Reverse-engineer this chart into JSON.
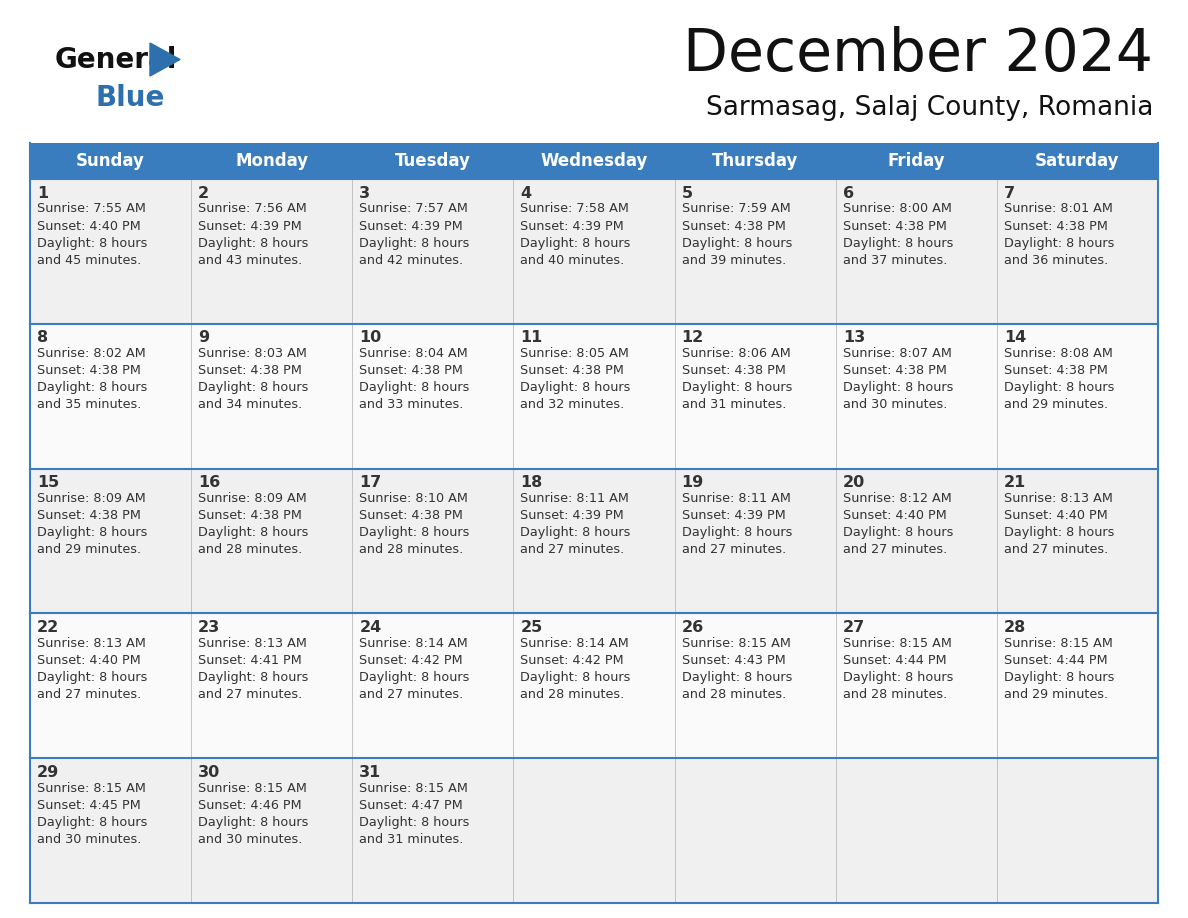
{
  "title": "December 2024",
  "subtitle": "Sarmasag, Salaj County, Romania",
  "header_color": "#3a7dbf",
  "header_text_color": "#ffffff",
  "border_color": "#3a7dbf",
  "text_color": "#333333",
  "days_of_week": [
    "Sunday",
    "Monday",
    "Tuesday",
    "Wednesday",
    "Thursday",
    "Friday",
    "Saturday"
  ],
  "weeks": [
    [
      {
        "day": 1,
        "sunrise": "7:55 AM",
        "sunset": "4:40 PM",
        "daylight_hours": 8,
        "daylight_minutes": 45
      },
      {
        "day": 2,
        "sunrise": "7:56 AM",
        "sunset": "4:39 PM",
        "daylight_hours": 8,
        "daylight_minutes": 43
      },
      {
        "day": 3,
        "sunrise": "7:57 AM",
        "sunset": "4:39 PM",
        "daylight_hours": 8,
        "daylight_minutes": 42
      },
      {
        "day": 4,
        "sunrise": "7:58 AM",
        "sunset": "4:39 PM",
        "daylight_hours": 8,
        "daylight_minutes": 40
      },
      {
        "day": 5,
        "sunrise": "7:59 AM",
        "sunset": "4:38 PM",
        "daylight_hours": 8,
        "daylight_minutes": 39
      },
      {
        "day": 6,
        "sunrise": "8:00 AM",
        "sunset": "4:38 PM",
        "daylight_hours": 8,
        "daylight_minutes": 37
      },
      {
        "day": 7,
        "sunrise": "8:01 AM",
        "sunset": "4:38 PM",
        "daylight_hours": 8,
        "daylight_minutes": 36
      }
    ],
    [
      {
        "day": 8,
        "sunrise": "8:02 AM",
        "sunset": "4:38 PM",
        "daylight_hours": 8,
        "daylight_minutes": 35
      },
      {
        "day": 9,
        "sunrise": "8:03 AM",
        "sunset": "4:38 PM",
        "daylight_hours": 8,
        "daylight_minutes": 34
      },
      {
        "day": 10,
        "sunrise": "8:04 AM",
        "sunset": "4:38 PM",
        "daylight_hours": 8,
        "daylight_minutes": 33
      },
      {
        "day": 11,
        "sunrise": "8:05 AM",
        "sunset": "4:38 PM",
        "daylight_hours": 8,
        "daylight_minutes": 32
      },
      {
        "day": 12,
        "sunrise": "8:06 AM",
        "sunset": "4:38 PM",
        "daylight_hours": 8,
        "daylight_minutes": 31
      },
      {
        "day": 13,
        "sunrise": "8:07 AM",
        "sunset": "4:38 PM",
        "daylight_hours": 8,
        "daylight_minutes": 30
      },
      {
        "day": 14,
        "sunrise": "8:08 AM",
        "sunset": "4:38 PM",
        "daylight_hours": 8,
        "daylight_minutes": 29
      }
    ],
    [
      {
        "day": 15,
        "sunrise": "8:09 AM",
        "sunset": "4:38 PM",
        "daylight_hours": 8,
        "daylight_minutes": 29
      },
      {
        "day": 16,
        "sunrise": "8:09 AM",
        "sunset": "4:38 PM",
        "daylight_hours": 8,
        "daylight_minutes": 28
      },
      {
        "day": 17,
        "sunrise": "8:10 AM",
        "sunset": "4:38 PM",
        "daylight_hours": 8,
        "daylight_minutes": 28
      },
      {
        "day": 18,
        "sunrise": "8:11 AM",
        "sunset": "4:39 PM",
        "daylight_hours": 8,
        "daylight_minutes": 27
      },
      {
        "day": 19,
        "sunrise": "8:11 AM",
        "sunset": "4:39 PM",
        "daylight_hours": 8,
        "daylight_minutes": 27
      },
      {
        "day": 20,
        "sunrise": "8:12 AM",
        "sunset": "4:40 PM",
        "daylight_hours": 8,
        "daylight_minutes": 27
      },
      {
        "day": 21,
        "sunrise": "8:13 AM",
        "sunset": "4:40 PM",
        "daylight_hours": 8,
        "daylight_minutes": 27
      }
    ],
    [
      {
        "day": 22,
        "sunrise": "8:13 AM",
        "sunset": "4:40 PM",
        "daylight_hours": 8,
        "daylight_minutes": 27
      },
      {
        "day": 23,
        "sunrise": "8:13 AM",
        "sunset": "4:41 PM",
        "daylight_hours": 8,
        "daylight_minutes": 27
      },
      {
        "day": 24,
        "sunrise": "8:14 AM",
        "sunset": "4:42 PM",
        "daylight_hours": 8,
        "daylight_minutes": 27
      },
      {
        "day": 25,
        "sunrise": "8:14 AM",
        "sunset": "4:42 PM",
        "daylight_hours": 8,
        "daylight_minutes": 28
      },
      {
        "day": 26,
        "sunrise": "8:15 AM",
        "sunset": "4:43 PM",
        "daylight_hours": 8,
        "daylight_minutes": 28
      },
      {
        "day": 27,
        "sunrise": "8:15 AM",
        "sunset": "4:44 PM",
        "daylight_hours": 8,
        "daylight_minutes": 28
      },
      {
        "day": 28,
        "sunrise": "8:15 AM",
        "sunset": "4:44 PM",
        "daylight_hours": 8,
        "daylight_minutes": 29
      }
    ],
    [
      {
        "day": 29,
        "sunrise": "8:15 AM",
        "sunset": "4:45 PM",
        "daylight_hours": 8,
        "daylight_minutes": 30
      },
      {
        "day": 30,
        "sunrise": "8:15 AM",
        "sunset": "4:46 PM",
        "daylight_hours": 8,
        "daylight_minutes": 30
      },
      {
        "day": 31,
        "sunrise": "8:15 AM",
        "sunset": "4:47 PM",
        "daylight_hours": 8,
        "daylight_minutes": 31
      },
      null,
      null,
      null,
      null
    ]
  ]
}
